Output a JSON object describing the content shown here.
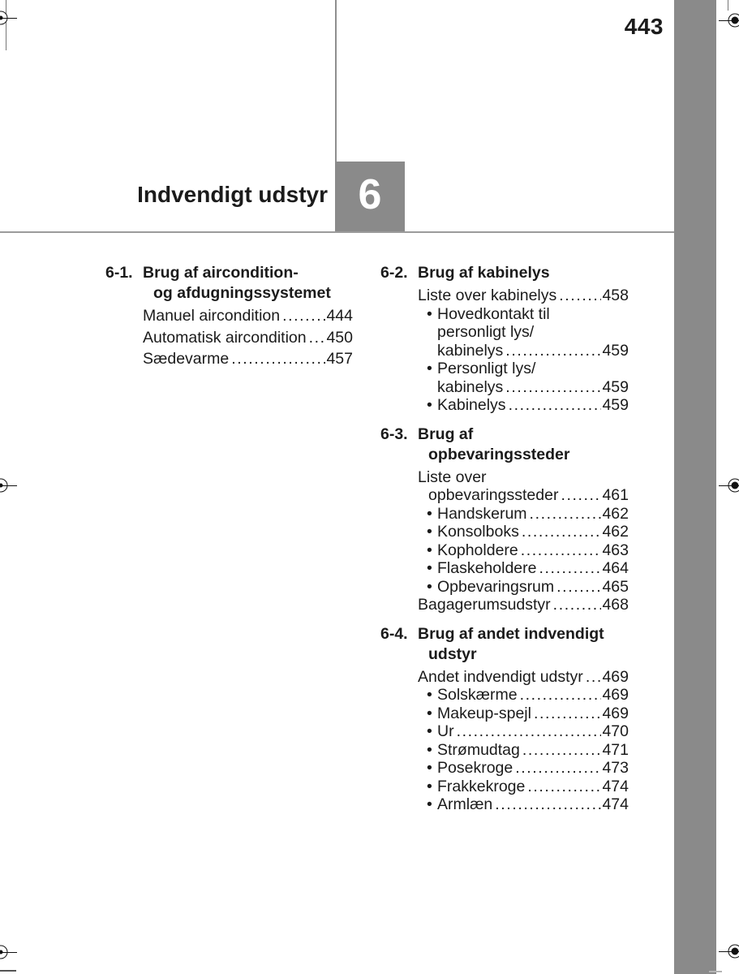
{
  "page": {
    "number": "443",
    "chapter_number": "6",
    "chapter_title": "Indvendigt udstyr"
  },
  "colors": {
    "accent_gray": "#8a8a8a",
    "rule_gray": "#9b9b9b",
    "text": "#1b1b1b",
    "chapter_number_text": "#ffffff"
  },
  "toc": {
    "bullet_char": "•",
    "left_column": [
      {
        "id": "6-1.",
        "title_lines": [
          "Brug af aircondition-",
          "og afdugningssystemet"
        ],
        "entries": [
          {
            "bullet": false,
            "lines": [
              "Manuel aircondition"
            ],
            "page": "444"
          },
          {
            "bullet": false,
            "lines": [
              "Automatisk aircondition"
            ],
            "page": "450"
          },
          {
            "bullet": false,
            "lines": [
              "Sædevarme"
            ],
            "page": "457"
          }
        ]
      }
    ],
    "right_column": [
      {
        "id": "6-2.",
        "title_lines": [
          "Brug af kabinelys"
        ],
        "entries": [
          {
            "bullet": false,
            "lines": [
              "Liste over kabinelys"
            ],
            "page": "458"
          },
          {
            "bullet": true,
            "lines": [
              "Hovedkontakt til",
              "personligt lys/",
              "kabinelys"
            ],
            "page": "459"
          },
          {
            "bullet": true,
            "lines": [
              "Personligt lys/",
              "kabinelys"
            ],
            "page": "459"
          },
          {
            "bullet": true,
            "lines": [
              "Kabinelys"
            ],
            "page": "459"
          }
        ]
      },
      {
        "id": "6-3.",
        "title_lines": [
          "Brug af",
          "opbevaringssteder"
        ],
        "entries": [
          {
            "bullet": false,
            "lines": [
              "Liste over",
              "opbevaringssteder"
            ],
            "page": "461"
          },
          {
            "bullet": true,
            "lines": [
              "Handskerum"
            ],
            "page": "462"
          },
          {
            "bullet": true,
            "lines": [
              "Konsolboks"
            ],
            "page": "462"
          },
          {
            "bullet": true,
            "lines": [
              "Kopholdere"
            ],
            "page": "463"
          },
          {
            "bullet": true,
            "lines": [
              "Flaskeholdere"
            ],
            "page": "464"
          },
          {
            "bullet": true,
            "lines": [
              "Opbevaringsrum"
            ],
            "page": "465"
          },
          {
            "bullet": false,
            "lines": [
              "Bagagerumsudstyr"
            ],
            "page": "468"
          }
        ]
      },
      {
        "id": "6-4.",
        "title_lines": [
          "Brug af andet indvendigt",
          "udstyr"
        ],
        "entries": [
          {
            "bullet": false,
            "lines": [
              "Andet indvendigt udstyr"
            ],
            "page": "469"
          },
          {
            "bullet": true,
            "lines": [
              "Solskærme"
            ],
            "page": "469"
          },
          {
            "bullet": true,
            "lines": [
              "Makeup-spejl"
            ],
            "page": "469"
          },
          {
            "bullet": true,
            "lines": [
              "Ur"
            ],
            "page": "470"
          },
          {
            "bullet": true,
            "lines": [
              "Strømudtag"
            ],
            "page": "471"
          },
          {
            "bullet": true,
            "lines": [
              "Posekroge"
            ],
            "page": "473"
          },
          {
            "bullet": true,
            "lines": [
              "Frakkekroge"
            ],
            "page": "474"
          },
          {
            "bullet": true,
            "lines": [
              "Armlæn"
            ],
            "page": "474"
          }
        ]
      }
    ]
  }
}
